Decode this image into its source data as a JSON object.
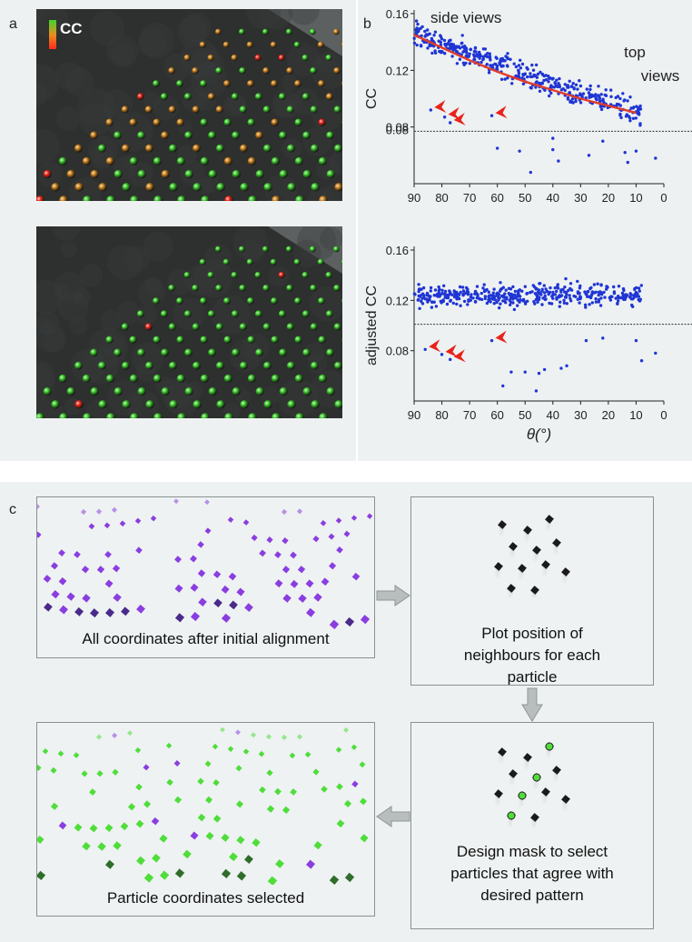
{
  "panel_labels": {
    "a": "a",
    "b": "b",
    "c": "c"
  },
  "panel_a": {
    "legend_label": "CC",
    "colors": {
      "high": "#3dd62a",
      "mid": "#d88a1c",
      "low": "#ff2a1a"
    }
  },
  "chart_data": [
    {
      "type": "scatter",
      "title": "",
      "xlabel": "",
      "ylabel": "CC",
      "xlim": [
        90,
        0
      ],
      "ylim": [
        0.04,
        0.16
      ],
      "x_ticks": [
        "90",
        "80",
        "70",
        "60",
        "50",
        "40",
        "30",
        "20",
        "10",
        "0"
      ],
      "y_ticks": [
        "0.16",
        "0.12",
        "0.08"
      ],
      "annotations": [
        "side views",
        "top views"
      ],
      "threshold": 0.077,
      "threshold_label": "0.08",
      "fit_curve": {
        "x": [
          90,
          80,
          70,
          60,
          50,
          40,
          30,
          20,
          10
        ],
        "y": [
          0.145,
          0.136,
          0.127,
          0.119,
          0.112,
          0.106,
          0.1,
          0.095,
          0.09
        ],
        "color": "#e03c2c"
      },
      "series": [
        {
          "name": "particles",
          "color": "#1f35d4"
        }
      ],
      "arrow_points": {
        "x": [
          84,
          79,
          77,
          62
        ],
        "y": [
          0.092,
          0.087,
          0.083,
          0.088
        ],
        "color": "#e8231c"
      },
      "outliers": {
        "x": [
          60,
          52,
          40,
          38,
          48,
          27,
          14,
          13,
          22,
          10,
          3,
          40
        ],
        "y": [
          0.065,
          0.063,
          0.064,
          0.056,
          0.048,
          0.06,
          0.062,
          0.055,
          0.07,
          0.063,
          0.058,
          0.072
        ]
      }
    },
    {
      "type": "scatter",
      "title": "",
      "xlabel": "θ(°)",
      "ylabel": "adjusted CC",
      "xlim": [
        90,
        0
      ],
      "ylim": [
        0.04,
        0.16
      ],
      "x_ticks": [
        "90",
        "80",
        "70",
        "60",
        "50",
        "40",
        "30",
        "20",
        "10",
        "0"
      ],
      "y_ticks": [
        "0.16",
        "0.12",
        "0.08"
      ],
      "threshold": 0.101,
      "series": [
        {
          "name": "particles",
          "color": "#1f35d4"
        }
      ],
      "arrow_points": {
        "x": [
          86,
          80,
          77,
          62
        ],
        "y": [
          0.081,
          0.077,
          0.073,
          0.088
        ],
        "color": "#e8231c"
      },
      "outliers": {
        "x": [
          55,
          50,
          45,
          43,
          46,
          37,
          35,
          22,
          10,
          8,
          3,
          58,
          28
        ],
        "y": [
          0.063,
          0.063,
          0.062,
          0.065,
          0.048,
          0.066,
          0.068,
          0.09,
          0.088,
          0.072,
          0.078,
          0.052,
          0.088
        ]
      }
    }
  ],
  "panel_c": {
    "box1_caption": "All coordinates after initial alignment",
    "box2_caption": "Plot position of neighbours for each particle",
    "box3_caption": "Design mask to select particles that agree with desired pattern",
    "box4_caption": "Particle coordinates selected",
    "colors": {
      "purple": "#8a3ee0",
      "green": "#4fdd3a",
      "arrow": "#b8bdbd"
    }
  }
}
